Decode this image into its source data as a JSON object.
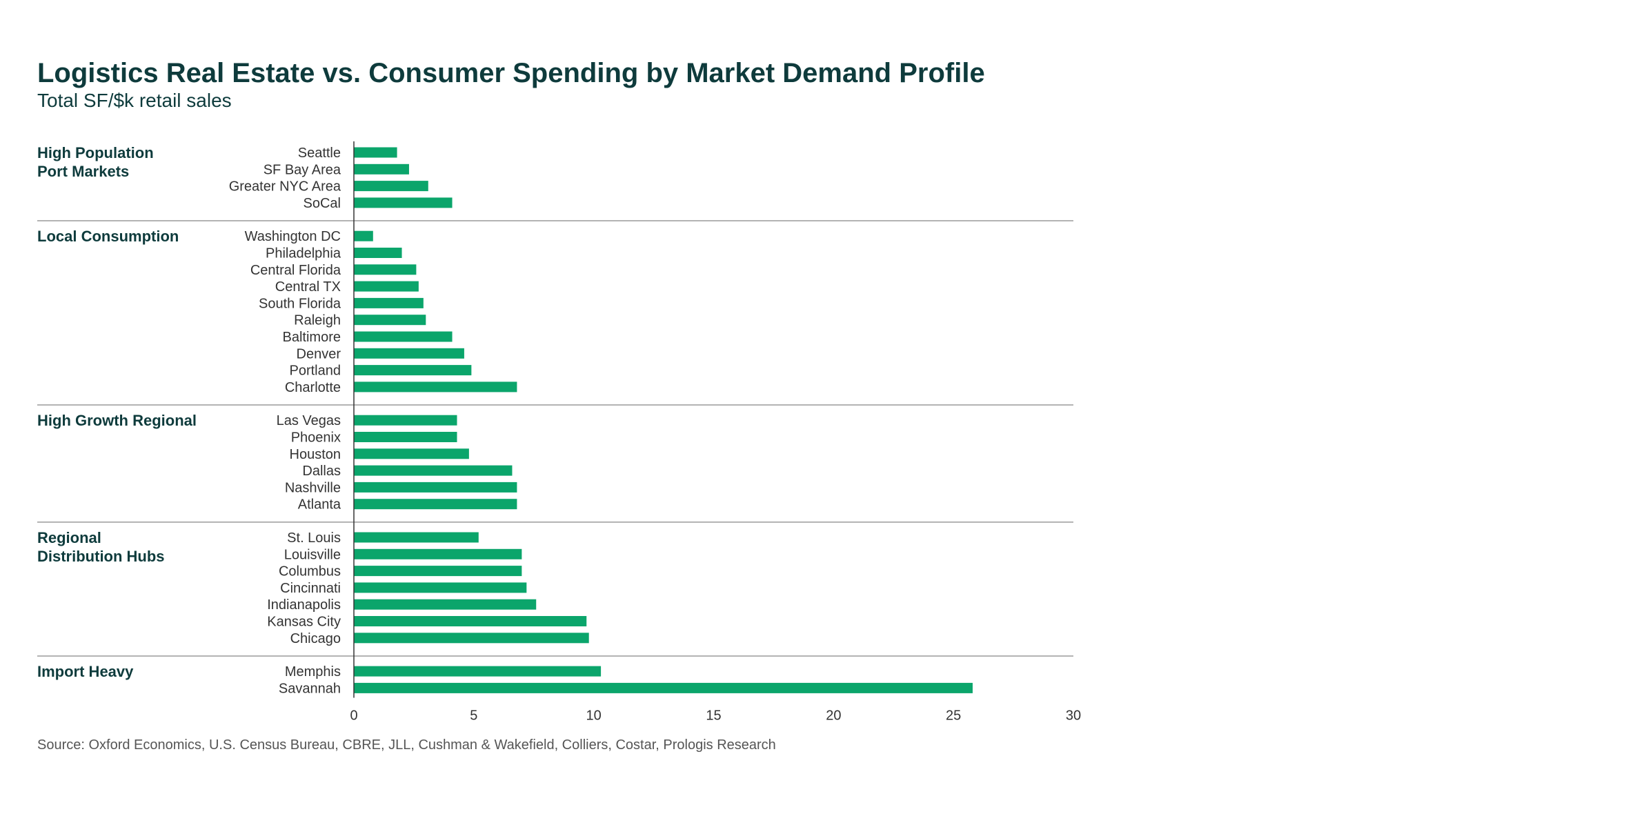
{
  "title": "Logistics Real Estate vs. Consumer Spending by Market Demand Profile",
  "subtitle": "Total SF/$k retail sales",
  "source": "Source: Oxford Economics, U.S. Census Bureau, CBRE, JLL, Cushman & Wakefield, Colliers, Costar, Prologis Research",
  "colors": {
    "bar": "#0ba56b",
    "title": "#0e3b3c",
    "divider": "#9a9a9a",
    "axis": "#333333"
  },
  "chart_data": {
    "type": "bar",
    "orientation": "horizontal",
    "title": "Logistics Real Estate vs. Consumer Spending by Market Demand Profile",
    "subtitle": "Total SF/$k retail sales",
    "xlim": [
      0,
      30
    ],
    "xticks": [
      0,
      5,
      10,
      15,
      20,
      25,
      30
    ],
    "grid": false,
    "groups": [
      {
        "name": "High Population Port Markets",
        "name_lines": [
          "High Population",
          "Port Markets"
        ],
        "categories": [
          "Seattle",
          "SF Bay Area",
          "Greater NYC Area",
          "SoCal"
        ],
        "values": [
          1.8,
          2.3,
          3.1,
          4.1
        ]
      },
      {
        "name": "Local Consumption",
        "name_lines": [
          "Local Consumption"
        ],
        "categories": [
          "Washington DC",
          "Philadelphia",
          "Central Florida",
          "Central TX",
          "South Florida",
          "Raleigh",
          "Baltimore",
          "Denver",
          "Portland",
          "Charlotte"
        ],
        "values": [
          0.8,
          2.0,
          2.6,
          2.7,
          2.9,
          3.0,
          4.1,
          4.6,
          4.9,
          6.8
        ]
      },
      {
        "name": "High Growth Regional",
        "name_lines": [
          "High Growth Regional"
        ],
        "categories": [
          "Las Vegas",
          "Phoenix",
          "Houston",
          "Dallas",
          "Nashville",
          "Atlanta"
        ],
        "values": [
          4.3,
          4.3,
          4.8,
          6.6,
          6.8,
          6.8
        ]
      },
      {
        "name": "Regional Distribution Hubs",
        "name_lines": [
          "Regional",
          "Distribution Hubs"
        ],
        "categories": [
          "St. Louis",
          "Louisville",
          "Columbus",
          "Cincinnati",
          "Indianapolis",
          "Kansas City",
          "Chicago"
        ],
        "values": [
          5.2,
          7.0,
          7.0,
          7.2,
          7.6,
          9.7,
          9.8
        ]
      },
      {
        "name": "Import Heavy",
        "name_lines": [
          "Import Heavy"
        ],
        "categories": [
          "Memphis",
          "Savannah"
        ],
        "values": [
          10.3,
          25.8
        ]
      }
    ]
  }
}
